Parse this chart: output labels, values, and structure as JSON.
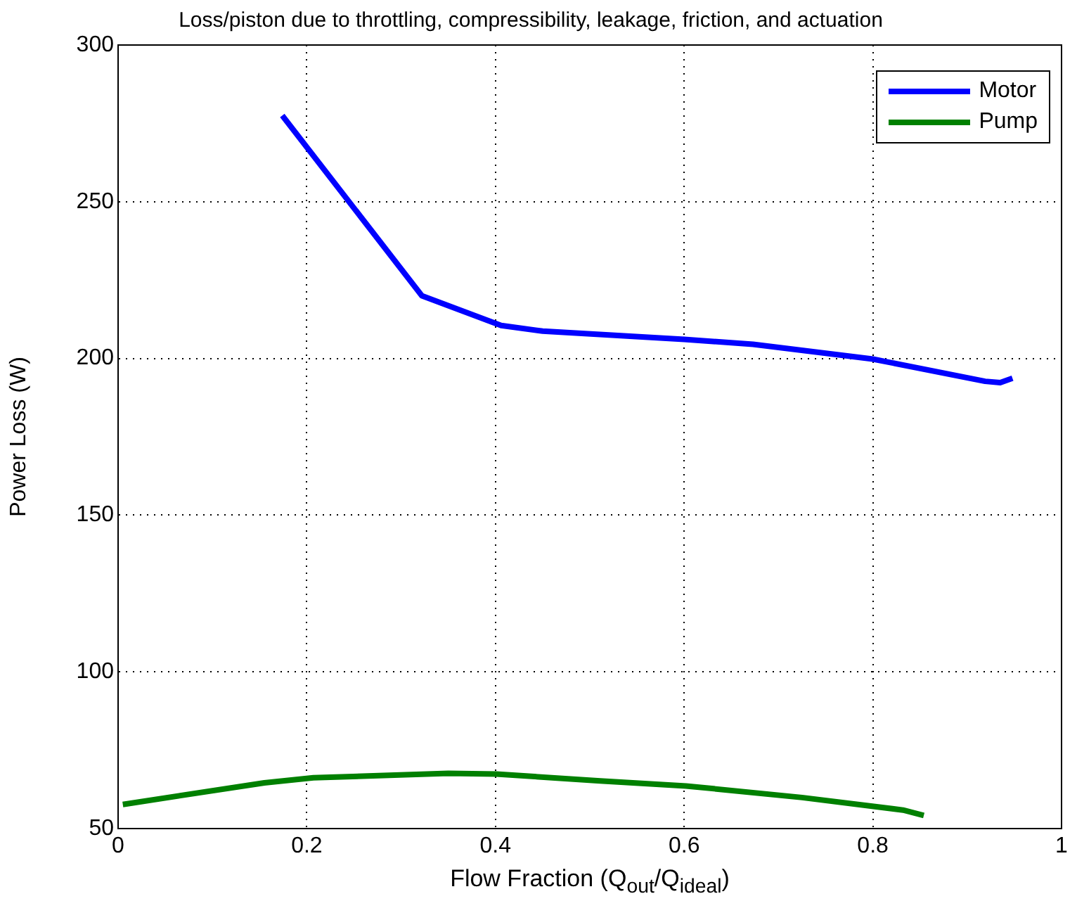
{
  "chart_data": {
    "type": "line",
    "title": "Loss/piston due to throttling, compressibility, leakage, friction, and actuation",
    "xlabel": "Flow Fraction (Q$_{out}$/Q$_{ideal}$)",
    "ylabel": "Power Loss (W)",
    "xlim": [
      0,
      1
    ],
    "xticks": [
      0,
      0.2,
      0.4,
      0.6,
      0.8,
      1
    ],
    "ylim": [
      50,
      300
    ],
    "yticks": [
      50,
      100,
      150,
      200,
      250,
      300
    ],
    "grid": true,
    "legend": "top right",
    "marker": "none",
    "line_style": "solid",
    "series": [
      {
        "name": "Motor",
        "color": "#0000ff",
        "x": [
          0.174,
          0.322,
          0.406,
          0.45,
          0.6,
          0.673,
          0.8,
          0.919,
          0.935,
          0.948
        ],
        "values": [
          277.5,
          220,
          210.5,
          208.7,
          206.1,
          204.5,
          199.8,
          192.7,
          192.3,
          193.7
        ]
      },
      {
        "name": "Pump",
        "color": "#008000",
        "x": [
          0.005,
          0.155,
          0.207,
          0.35,
          0.401,
          0.511,
          0.602,
          0.725,
          0.832,
          0.854
        ],
        "values": [
          57.7,
          64.6,
          66.2,
          67.6,
          67.4,
          65.2,
          63.6,
          59.9,
          55.9,
          54.2
        ]
      }
    ]
  }
}
